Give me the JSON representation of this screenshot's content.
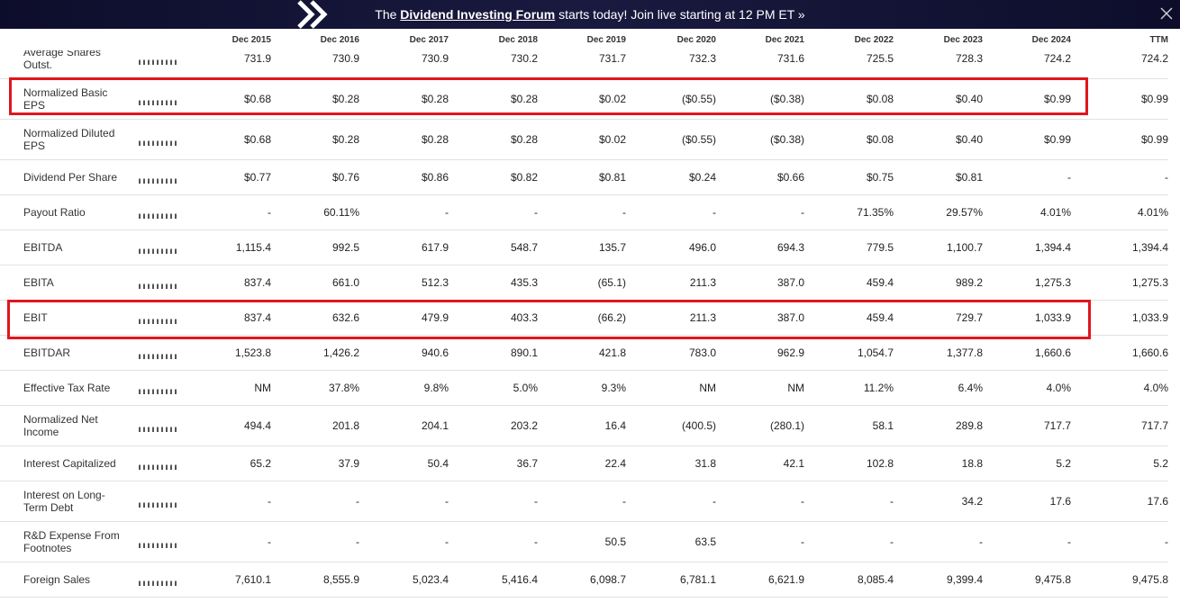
{
  "banner": {
    "prefix": "The",
    "link": "Dividend Investing Forum",
    "suffix": "starts today! Join live starting at 12 PM ET »"
  },
  "table": {
    "columns": [
      "Dec 2015",
      "Dec 2016",
      "Dec 2017",
      "Dec 2018",
      "Dec 2019",
      "Dec 2020",
      "Dec 2021",
      "Dec 2022",
      "Dec 2023",
      "Dec 2024",
      "TTM"
    ],
    "rows": [
      {
        "label": "Average Shares Outst.",
        "values": [
          "731.9",
          "730.9",
          "730.9",
          "730.2",
          "731.7",
          "732.3",
          "731.6",
          "725.5",
          "728.3",
          "724.2",
          "724.2"
        ]
      },
      {
        "label": "Normalized Basic EPS",
        "values": [
          "$0.68",
          "$0.28",
          "$0.28",
          "$0.28",
          "$0.02",
          "($0.55)",
          "($0.38)",
          "$0.08",
          "$0.40",
          "$0.99",
          "$0.99"
        ]
      },
      {
        "label": "Normalized Diluted EPS",
        "values": [
          "$0.68",
          "$0.28",
          "$0.28",
          "$0.28",
          "$0.02",
          "($0.55)",
          "($0.38)",
          "$0.08",
          "$0.40",
          "$0.99",
          "$0.99"
        ]
      },
      {
        "label": "Dividend Per Share",
        "values": [
          "$0.77",
          "$0.76",
          "$0.86",
          "$0.82",
          "$0.81",
          "$0.24",
          "$0.66",
          "$0.75",
          "$0.81",
          "-",
          "-"
        ]
      },
      {
        "label": "Payout Ratio",
        "values": [
          "-",
          "60.11%",
          "-",
          "-",
          "-",
          "-",
          "-",
          "71.35%",
          "29.57%",
          "4.01%",
          "4.01%"
        ]
      },
      {
        "label": "EBITDA",
        "values": [
          "1,115.4",
          "992.5",
          "617.9",
          "548.7",
          "135.7",
          "496.0",
          "694.3",
          "779.5",
          "1,100.7",
          "1,394.4",
          "1,394.4"
        ]
      },
      {
        "label": "EBITA",
        "values": [
          "837.4",
          "661.0",
          "512.3",
          "435.3",
          "(65.1)",
          "211.3",
          "387.0",
          "459.4",
          "989.2",
          "1,275.3",
          "1,275.3"
        ]
      },
      {
        "label": "EBIT",
        "values": [
          "837.4",
          "632.6",
          "479.9",
          "403.3",
          "(66.2)",
          "211.3",
          "387.0",
          "459.4",
          "729.7",
          "1,033.9",
          "1,033.9"
        ]
      },
      {
        "label": "EBITDAR",
        "values": [
          "1,523.8",
          "1,426.2",
          "940.6",
          "890.1",
          "421.8",
          "783.0",
          "962.9",
          "1,054.7",
          "1,377.8",
          "1,660.6",
          "1,660.6"
        ]
      },
      {
        "label": "Effective Tax Rate",
        "values": [
          "NM",
          "37.8%",
          "9.8%",
          "5.0%",
          "9.3%",
          "NM",
          "NM",
          "11.2%",
          "6.4%",
          "4.0%",
          "4.0%"
        ]
      },
      {
        "label": "Normalized Net Income",
        "values": [
          "494.4",
          "201.8",
          "204.1",
          "203.2",
          "16.4",
          "(400.5)",
          "(280.1)",
          "58.1",
          "289.8",
          "717.7",
          "717.7"
        ]
      },
      {
        "label": "Interest Capitalized",
        "values": [
          "65.2",
          "37.9",
          "50.4",
          "36.7",
          "22.4",
          "31.8",
          "42.1",
          "102.8",
          "18.8",
          "5.2",
          "5.2"
        ]
      },
      {
        "label": "Interest on Long-Term Debt",
        "values": [
          "-",
          "-",
          "-",
          "-",
          "-",
          "-",
          "-",
          "-",
          "34.2",
          "17.6",
          "17.6"
        ]
      },
      {
        "label": "R&D Expense From Footnotes",
        "values": [
          "-",
          "-",
          "-",
          "-",
          "50.5",
          "63.5",
          "-",
          "-",
          "-",
          "-",
          "-"
        ]
      },
      {
        "label": "Foreign Sales",
        "values": [
          "7,610.1",
          "8,555.9",
          "5,023.4",
          "5,416.4",
          "6,098.7",
          "6,781.1",
          "6,621.9",
          "8,085.4",
          "9,399.4",
          "9,475.8",
          "9,475.8"
        ]
      }
    ]
  }
}
